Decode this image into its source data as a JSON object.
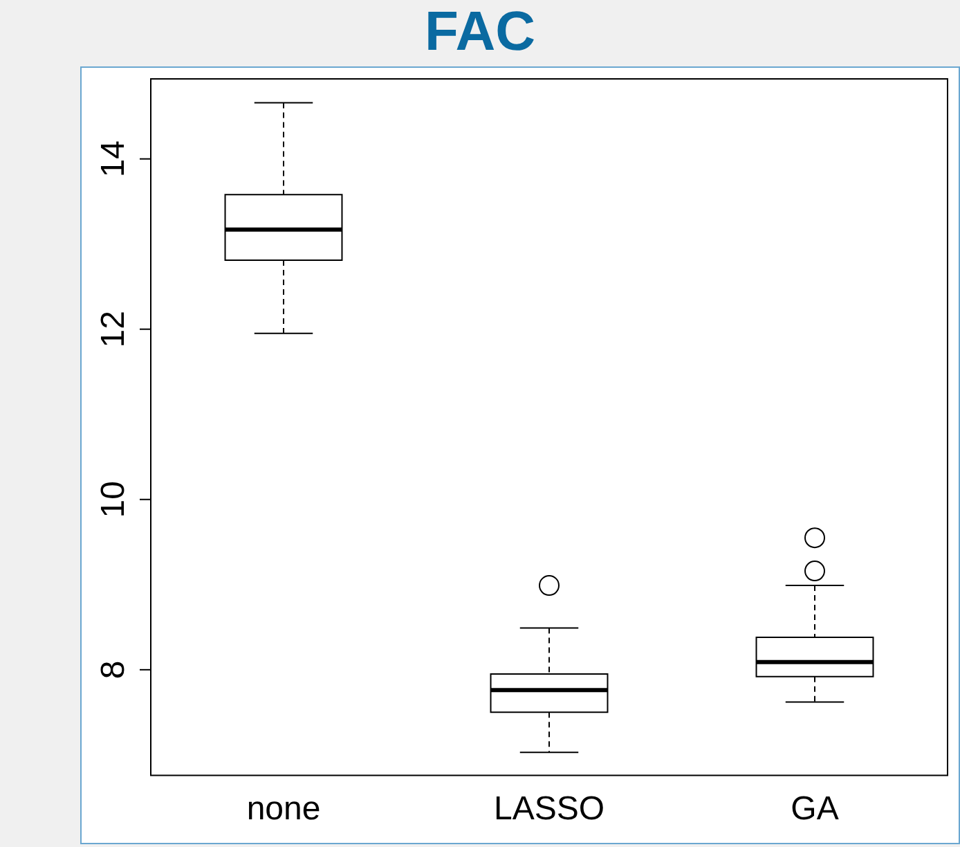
{
  "chart_data": {
    "type": "box",
    "title": "FAC",
    "categories": [
      "none",
      "LASSO",
      "GA"
    ],
    "boxes": [
      {
        "low": 11.95,
        "q1": 12.81,
        "median": 13.17,
        "q3": 13.58,
        "high": 14.66
      },
      {
        "low": 7.03,
        "q1": 7.5,
        "median": 7.76,
        "q3": 7.95,
        "high": 8.49,
        "outliers": [
          8.99
        ]
      },
      {
        "low": 7.62,
        "q1": 7.92,
        "median": 8.09,
        "q3": 8.38,
        "high": 8.99,
        "outliers": [
          9.16,
          9.55
        ]
      }
    ],
    "ylim": [
      6.76,
      14.94
    ],
    "yticks": [
      8,
      10,
      12,
      14
    ]
  }
}
